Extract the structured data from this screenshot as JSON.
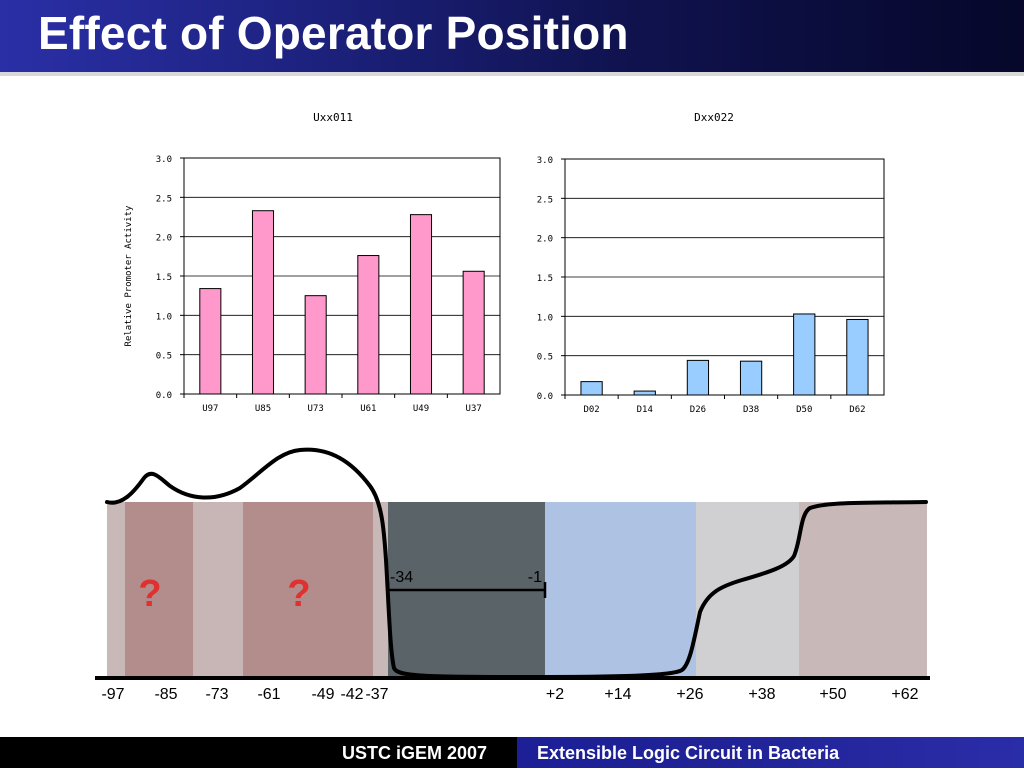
{
  "slide": {
    "title": "Effect of Operator Position",
    "footer_left": "USTC iGEM 2007",
    "footer_right": "Extensible Logic Circuit in Bacteria"
  },
  "colors": {
    "uxx_bar": "#ff99cc",
    "dxx_bar": "#99ccff",
    "promoter_region": "#5a6368",
    "operator_region": "#aec3e3",
    "unknown_mark": "#e03030"
  },
  "chart_data": [
    {
      "type": "bar",
      "title": "Uxx011",
      "ylabel": "Relative Promoter Activity",
      "xlabel": "",
      "categories": [
        "U97",
        "U85",
        "U73",
        "U61",
        "U49",
        "U37"
      ],
      "values": [
        1.34,
        2.33,
        1.25,
        1.76,
        2.28,
        1.56
      ],
      "ylim": [
        0,
        3.0
      ],
      "yticks": [
        "0.0",
        "0.5",
        "1.0",
        "1.5",
        "2.0",
        "2.5",
        "3.0"
      ],
      "grid": true
    },
    {
      "type": "bar",
      "title": "Dxx022",
      "ylabel": "",
      "xlabel": "",
      "categories": [
        "D02",
        "D14",
        "D26",
        "D38",
        "D50",
        "D62"
      ],
      "values": [
        0.17,
        0.05,
        0.44,
        0.43,
        1.03,
        0.96
      ],
      "ylim": [
        0,
        3.0
      ],
      "yticks": [
        "0.0",
        "0.5",
        "1.0",
        "1.5",
        "2.0",
        "2.5",
        "3.0"
      ],
      "grid": true
    }
  ],
  "diagram": {
    "positions": [
      "-97",
      "-85",
      "-73",
      "-61",
      "-49",
      "-42",
      "-37",
      "+2",
      "+14",
      "+26",
      "+38",
      "+50",
      "+62"
    ],
    "promoter_start": "-34",
    "promoter_end": "-1",
    "unknown_marks": [
      "?",
      "?"
    ]
  }
}
